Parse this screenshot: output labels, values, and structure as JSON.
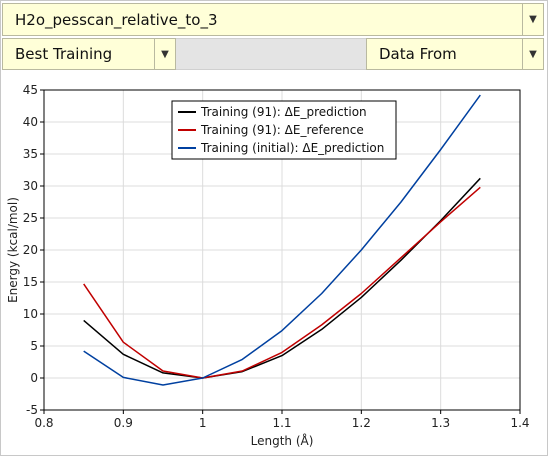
{
  "dataset_select": {
    "value": "H2o_pesscan_relative_to_3",
    "arrow": "▼"
  },
  "training_select": {
    "value": "Best Training",
    "arrow": "▼"
  },
  "source_select": {
    "value": "Data From",
    "arrow": "▼"
  },
  "chart_data": {
    "type": "line",
    "title": "",
    "xlabel": "Length (Å)",
    "ylabel": "Energy (kcal/mol)",
    "xlim": [
      0.8,
      1.4
    ],
    "ylim": [
      -5,
      45
    ],
    "xticks": [
      "0.8",
      "0.9",
      "1",
      "1.1",
      "1.2",
      "1.3",
      "1.4"
    ],
    "yticks": [
      "-5",
      "0",
      "5",
      "10",
      "15",
      "20",
      "25",
      "30",
      "35",
      "40",
      "45"
    ],
    "grid": true,
    "legend_position": "top-center",
    "x": [
      0.85,
      0.9,
      0.95,
      1.0,
      1.05,
      1.1,
      1.15,
      1.2,
      1.25,
      1.3,
      1.35
    ],
    "series": [
      {
        "name": "Training (91): ΔE_prediction",
        "color": "#000000",
        "values": [
          9.0,
          3.7,
          0.8,
          0.0,
          1.0,
          3.5,
          7.6,
          12.6,
          18.4,
          24.6,
          31.2
        ]
      },
      {
        "name": "Training (91): ΔE_reference",
        "color": "#c00000",
        "values": [
          14.7,
          5.6,
          1.1,
          0.0,
          1.1,
          4.0,
          8.3,
          13.2,
          18.8,
          24.4,
          29.8
        ]
      },
      {
        "name": "Training (initial): ΔE_prediction",
        "color": "#0040a0",
        "values": [
          4.2,
          0.1,
          -1.1,
          0.0,
          2.9,
          7.4,
          13.2,
          20.0,
          27.5,
          35.7,
          44.2
        ]
      }
    ]
  }
}
